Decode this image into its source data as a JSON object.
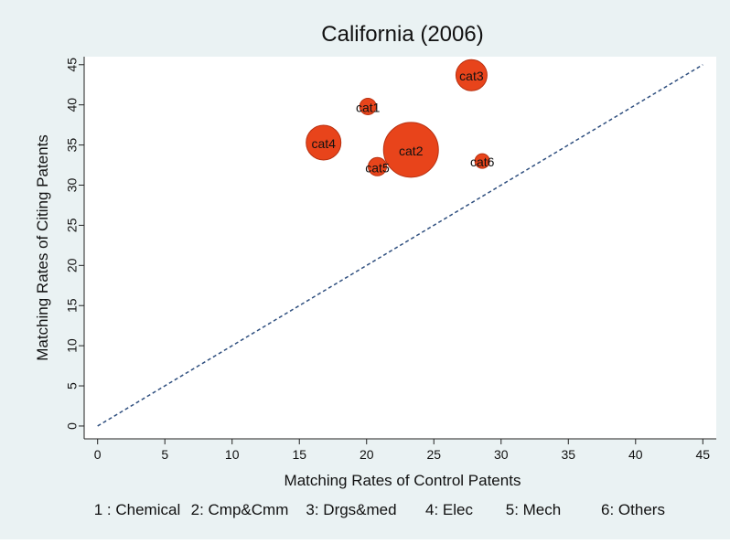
{
  "chart_data": {
    "type": "scatter",
    "title": "California (2006)",
    "x_label": "Matching Rates of Control Patents",
    "y_label": "Matching Rates of Citing Patents",
    "series": [
      {
        "color": "#e8441b",
        "labels": [
          "cat1",
          "cat2",
          "cat3",
          "cat4",
          "cat5",
          "cat6"
        ],
        "x": [
          20.1,
          23.3,
          27.8,
          16.8,
          20.8,
          28.6
        ],
        "values": [
          39.8,
          34.4,
          43.7,
          35.3,
          32.3,
          33.0
        ],
        "sizes": [
          81,
          900,
          289,
          361,
          100,
          64
        ]
      }
    ],
    "reference_line": {
      "x": [
        0,
        45
      ],
      "y": [
        0,
        45
      ]
    },
    "legend_note": [
      "1 : Chemical",
      "2: Cmp&Cmm",
      "3: Drgs&med",
      "4: Elec",
      "5: Mech",
      "6: Others"
    ],
    "xlim": [
      -1,
      46
    ],
    "ylim": [
      -1.6,
      46
    ],
    "xticks": [
      0,
      5,
      10,
      15,
      20,
      25,
      30,
      35,
      40,
      45
    ],
    "yticks": [
      0,
      5,
      10,
      15,
      20,
      25,
      30,
      35,
      40,
      45
    ]
  }
}
